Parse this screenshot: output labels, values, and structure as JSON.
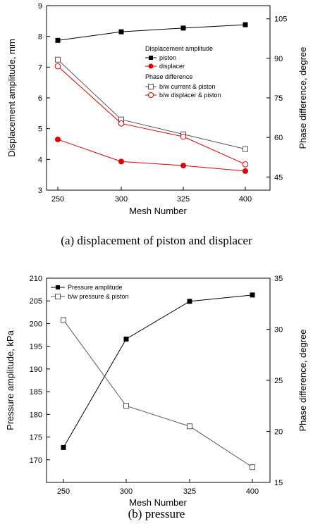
{
  "chart_data": [
    {
      "type": "line",
      "caption": "(a)  displacement  of  piston  and  displacer",
      "categories": [
        "250",
        "300",
        "325",
        "400"
      ],
      "xlabel": "Mesh Number",
      "ylabel": "Displacement amplitude, mm",
      "ylabel_right": "Phase difference, degree",
      "ylim": [
        3,
        9
      ],
      "yticks": [
        "3",
        "4",
        "5",
        "6",
        "7",
        "8",
        "9"
      ],
      "ylim_right": [
        40,
        110
      ],
      "yticks_right": [
        "45",
        "60",
        "75",
        "90",
        "105"
      ],
      "legend": {
        "placement": "right",
        "group1_title": "Displacement amplitude",
        "group2_title": "Phase difference"
      },
      "series": [
        {
          "name": "piston",
          "axis": "left",
          "color": "#000000",
          "marker": "filled-square",
          "values": [
            7.87,
            8.15,
            8.27,
            8.38
          ]
        },
        {
          "name": "displacer",
          "axis": "left",
          "color": "#e00000",
          "marker": "filled-circle",
          "values": [
            4.65,
            3.93,
            3.8,
            3.62
          ]
        },
        {
          "name": "b/w current & piston",
          "axis": "right",
          "color": "#555555",
          "marker": "open-square",
          "values": [
            89.5,
            66.8,
            61.2,
            55.6
          ]
        },
        {
          "name": "b/w displacer & piston",
          "axis": "right",
          "color": "#e00000",
          "marker": "open-circle",
          "values": [
            87.0,
            65.3,
            60.3,
            49.8
          ]
        }
      ]
    },
    {
      "type": "line",
      "caption": "(b)  pressure",
      "categories": [
        "250",
        "300",
        "325",
        "400"
      ],
      "xlabel": "Mesh Number",
      "ylabel": "Pressure amplitude, kPa",
      "ylabel_right": "Phase difference, degree",
      "ylim": [
        165,
        210
      ],
      "yticks": [
        "170",
        "175",
        "180",
        "185",
        "190",
        "195",
        "200",
        "205",
        "210"
      ],
      "ylim_right": [
        15,
        35
      ],
      "yticks_right": [
        "15",
        "20",
        "25",
        "30",
        "35"
      ],
      "legend": {
        "placement": "top-left"
      },
      "series": [
        {
          "name": "Pressure amplitude",
          "axis": "left",
          "color": "#000000",
          "marker": "filled-square",
          "values": [
            172.7,
            196.6,
            204.9,
            206.3
          ]
        },
        {
          "name": "b/w pressure & piston",
          "axis": "right",
          "color": "#555555",
          "marker": "open-square",
          "values": [
            30.9,
            22.5,
            20.5,
            16.5
          ]
        }
      ]
    }
  ]
}
